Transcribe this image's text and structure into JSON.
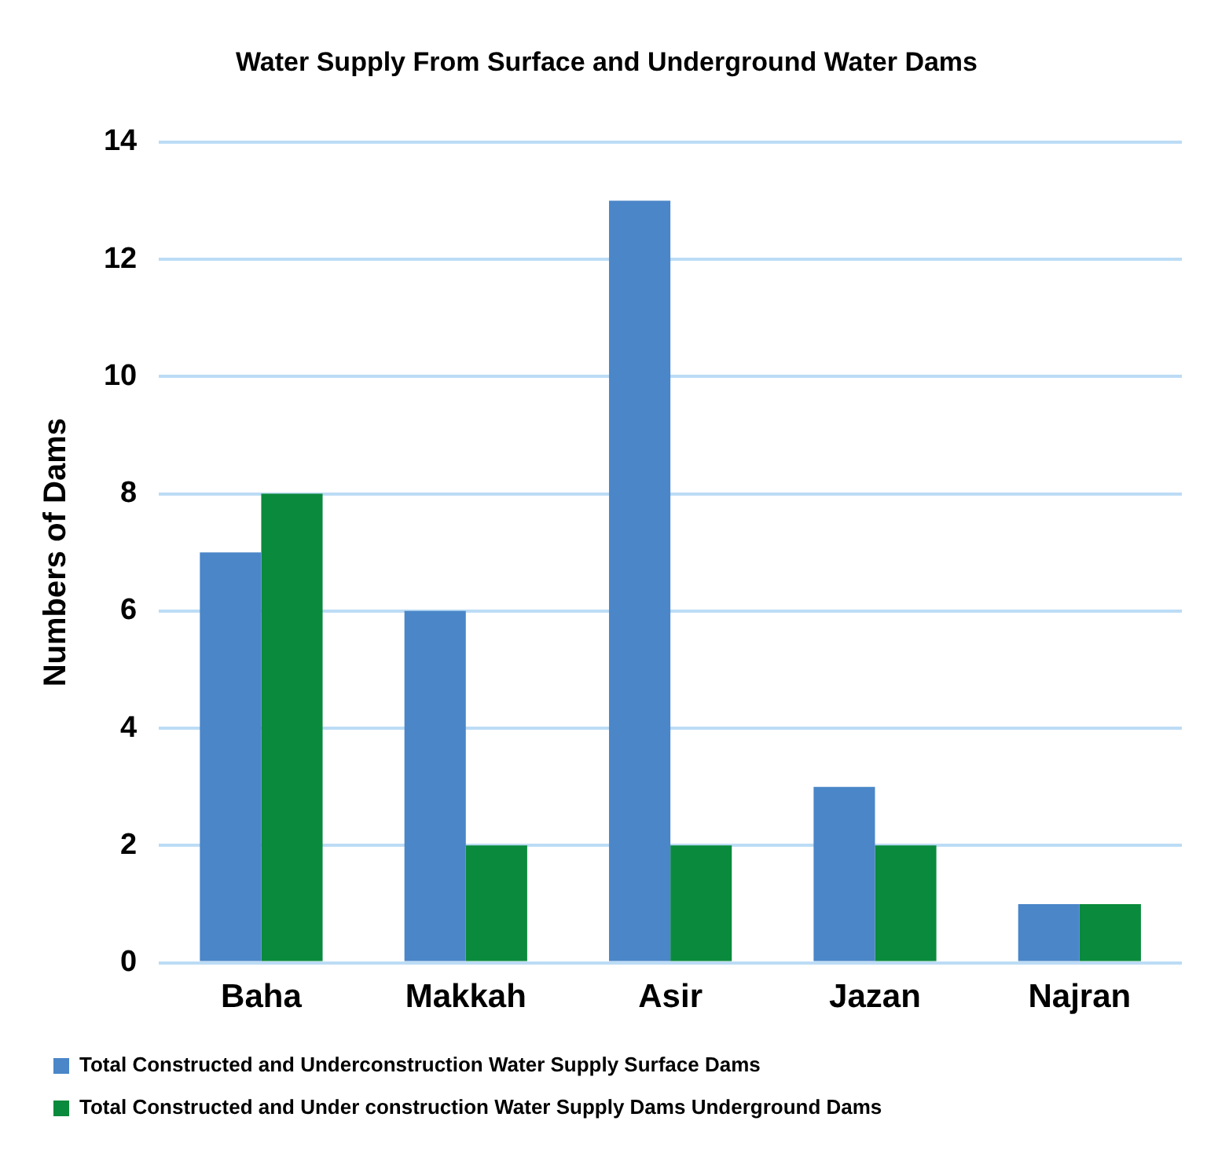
{
  "chart_data": {
    "type": "bar",
    "title": "Water Supply From Surface and Underground Water Dams",
    "ylabel": "Numbers of Dams",
    "categories": [
      "Baha",
      "Makkah",
      "Asir",
      "Jazan",
      "Najran"
    ],
    "series": [
      {
        "name": "Total Constructed and Underconstruction Water Supply Surface Dams",
        "color": "#4a86c8",
        "values": [
          7,
          6,
          13,
          3,
          1
        ]
      },
      {
        "name": "Total Constructed and Under construction Water Supply Dams Underground Dams",
        "color": "#0a8a3c",
        "values": [
          8,
          2,
          2,
          2,
          1
        ]
      }
    ],
    "ylim": [
      0,
      14
    ],
    "yticks": [
      0,
      2,
      4,
      6,
      8,
      10,
      12,
      14
    ],
    "grid": "y",
    "legend": "bottom"
  }
}
